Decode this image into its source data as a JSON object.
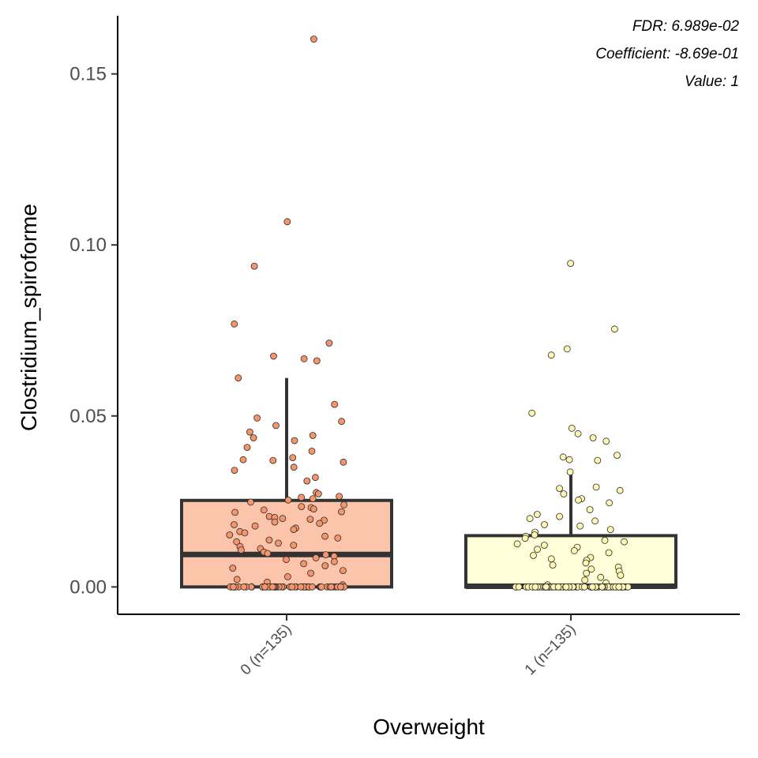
{
  "chart_data": {
    "type": "box",
    "xlabel": "Overweight",
    "ylabel": "Clostridium_spiroforme",
    "ylim": [
      -0.008,
      0.167
    ],
    "yticks": [
      0.0,
      0.05,
      0.1,
      0.15
    ],
    "ytick_labels": [
      "0.00",
      "0.05",
      "0.10",
      "0.15"
    ],
    "categories": [
      "0 (n=135)",
      "1 (n=135)"
    ],
    "annotations": [
      "FDR: 6.989e-02",
      "Coefficient: -8.69e-01",
      "Value: 1"
    ],
    "groups": [
      {
        "label": "0 (n=135)",
        "fill": "#fcc5ab",
        "point_fill": "#f4956c",
        "box": {
          "min": 0.0,
          "q1": 0.0,
          "median": 0.0095,
          "q3": 0.0253,
          "whisker_high": 0.0611
        },
        "points": [
          0.1602,
          0.1068,
          0.0938,
          0.0769,
          0.0713,
          0.0675,
          0.0667,
          0.0661,
          0.0611,
          0.0534,
          0.0494,
          0.0484,
          0.0472,
          0.0453,
          0.0443,
          0.0436,
          0.0428,
          0.0408,
          0.0397,
          0.0378,
          0.0372,
          0.037,
          0.0365,
          0.035,
          0.0341,
          0.032,
          0.031,
          0.0276,
          0.0272,
          0.0265,
          0.0262,
          0.0258,
          0.0254,
          0.0248,
          0.024,
          0.0235,
          0.0232,
          0.0228,
          0.0225,
          0.022,
          0.0218,
          0.0206,
          0.0203,
          0.02,
          0.0198,
          0.0195,
          0.019,
          0.0186,
          0.0182,
          0.0178,
          0.0172,
          0.0168,
          0.0162,
          0.0158,
          0.0152,
          0.0148,
          0.0143,
          0.0137,
          0.0132,
          0.0128,
          0.0122,
          0.0118,
          0.0112,
          0.0108,
          0.0102,
          0.0098,
          0.0094,
          0.009,
          0.0085,
          0.008,
          0.0074,
          0.0068,
          0.0062,
          0.0055,
          0.0048,
          0.004,
          0.003,
          0.0022,
          0.0014,
          0.0006,
          0,
          0,
          0,
          0,
          0,
          0,
          0,
          0,
          0,
          0,
          0,
          0,
          0,
          0,
          0,
          0,
          0,
          0,
          0,
          0,
          0,
          0,
          0,
          0,
          0,
          0,
          0,
          0,
          0,
          0,
          0,
          0,
          0,
          0,
          0,
          0,
          0,
          0,
          0,
          0,
          0,
          0,
          0,
          0,
          0,
          0,
          0,
          0,
          0,
          0,
          0,
          0,
          0,
          0,
          0
        ]
      },
      {
        "label": "1 (n=135)",
        "fill": "#ffffd9",
        "point_fill": "#fdf7b0",
        "box": {
          "min": 0.0,
          "q1": 0.0,
          "median": 0.0002,
          "q3": 0.015,
          "whisker_high": 0.0336
        },
        "points": [
          0.0946,
          0.0754,
          0.0696,
          0.0678,
          0.0508,
          0.0464,
          0.0448,
          0.0436,
          0.0426,
          0.0385,
          0.038,
          0.0372,
          0.037,
          0.0336,
          0.0292,
          0.0288,
          0.0282,
          0.0272,
          0.0258,
          0.0254,
          0.0246,
          0.0226,
          0.0212,
          0.0206,
          0.02,
          0.0193,
          0.0182,
          0.0178,
          0.0168,
          0.016,
          0.0152,
          0.0148,
          0.0142,
          0.0136,
          0.0132,
          0.0126,
          0.0122,
          0.0116,
          0.011,
          0.0106,
          0.01,
          0.0092,
          0.0086,
          0.0082,
          0.0078,
          0.007,
          0.0064,
          0.0058,
          0.0052,
          0.0046,
          0.004,
          0.0034,
          0.0028,
          0.002,
          0.0012,
          0.0006,
          0,
          0,
          0,
          0,
          0,
          0,
          0,
          0,
          0,
          0,
          0,
          0,
          0,
          0,
          0,
          0,
          0,
          0,
          0,
          0,
          0,
          0,
          0,
          0,
          0,
          0,
          0,
          0,
          0,
          0,
          0,
          0,
          0,
          0,
          0,
          0,
          0,
          0,
          0,
          0,
          0,
          0,
          0,
          0,
          0,
          0,
          0,
          0,
          0,
          0,
          0,
          0,
          0,
          0,
          0,
          0,
          0,
          0,
          0,
          0,
          0,
          0,
          0,
          0,
          0,
          0,
          0,
          0,
          0,
          0,
          0,
          0,
          0,
          0,
          0,
          0,
          0,
          0,
          0
        ]
      }
    ],
    "grid": false,
    "legend": "none"
  }
}
